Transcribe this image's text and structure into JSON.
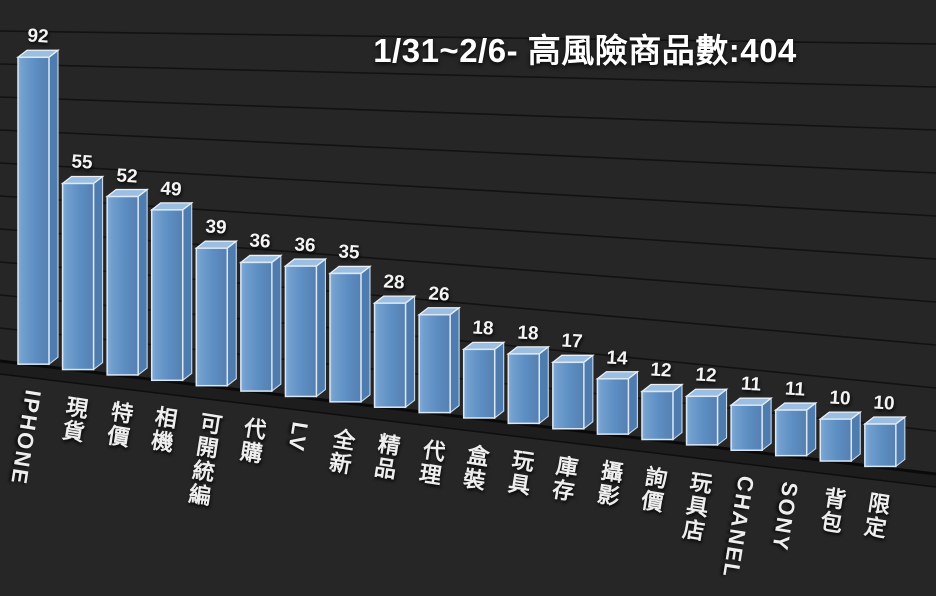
{
  "title": "1/31~2/6- 高風險商品數:404",
  "colors": {
    "background": "#262626",
    "gridline": "#121212",
    "baseline": "#0a0a0a",
    "floor_band": "#1d1d1d",
    "floor_edge": "#0e0e0e",
    "bar_front_light": "#83ACD8",
    "bar_front_mid": "#5D8EC3",
    "bar_front_dark": "#567FB1",
    "bar_top": "#9CBEE1",
    "bar_side": "#4E7CAE",
    "bar_border": "#DCE8F4",
    "text": "#FFFFFF"
  },
  "chart_data": {
    "type": "bar",
    "style": "3d-perspective",
    "title": "1/31~2/6- 高風險商品數:404",
    "categories": [
      "IPHONE",
      "現貨",
      "特價",
      "相機",
      "可開統編",
      "代購",
      "LV",
      "全新",
      "精品",
      "代理",
      "盒裝",
      "玩具",
      "庫存",
      "攝影",
      "詢價",
      "玩具店",
      "CHANEL",
      "SONY",
      "背包",
      "限定"
    ],
    "values": [
      92,
      55,
      52,
      49,
      39,
      36,
      36,
      35,
      28,
      26,
      18,
      18,
      17,
      14,
      12,
      12,
      11,
      11,
      10,
      10
    ],
    "xlabel": "",
    "ylabel": "",
    "ylim": [
      0,
      100
    ],
    "gridline_step": 10,
    "grid": "on",
    "legend": "none",
    "data_labels": true,
    "category_label_orientation": "vertical"
  }
}
